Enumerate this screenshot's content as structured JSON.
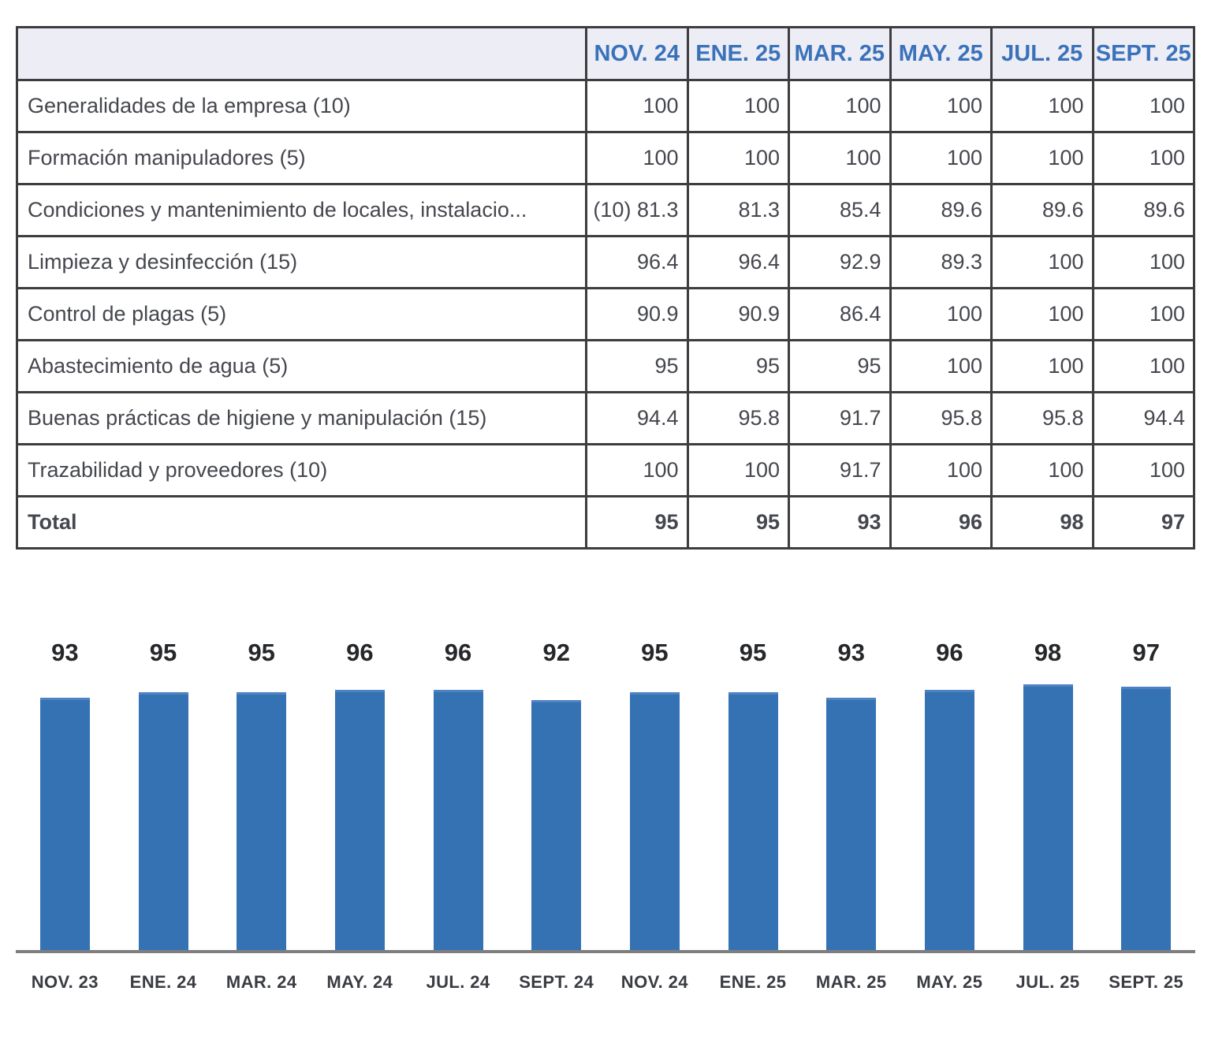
{
  "table": {
    "corner_label": ""
  },
  "chart_data": [
    {
      "type": "table",
      "columns": [
        "NOV. 24",
        "ENE. 25",
        "MAR. 25",
        "MAY. 25",
        "JUL. 25",
        "SEPT. 25"
      ],
      "rows": [
        {
          "label": "Generalidades de la empresa (10)",
          "values": [
            "100",
            "100",
            "100",
            "100",
            "100",
            "100"
          ]
        },
        {
          "label": "Formación manipuladores (5)",
          "values": [
            "100",
            "100",
            "100",
            "100",
            "100",
            "100"
          ]
        },
        {
          "label": "Condiciones y mantenimiento de locales, instalacio...",
          "values": [
            "(10) 81.3",
            "81.3",
            "85.4",
            "89.6",
            "89.6",
            "89.6"
          ]
        },
        {
          "label": "Limpieza y desinfección (15)",
          "values": [
            "96.4",
            "96.4",
            "92.9",
            "89.3",
            "100",
            "100"
          ]
        },
        {
          "label": "Control de plagas (5)",
          "values": [
            "90.9",
            "90.9",
            "86.4",
            "100",
            "100",
            "100"
          ]
        },
        {
          "label": "Abastecimiento de agua (5)",
          "values": [
            "95",
            "95",
            "95",
            "100",
            "100",
            "100"
          ]
        },
        {
          "label": "Buenas prácticas de higiene y manipulación (15)",
          "values": [
            "94.4",
            "95.8",
            "91.7",
            "95.8",
            "95.8",
            "94.4"
          ]
        },
        {
          "label": "Trazabilidad y proveedores (10)",
          "values": [
            "100",
            "100",
            "91.7",
            "100",
            "100",
            "100"
          ]
        }
      ],
      "total_row": {
        "label": "Total",
        "values": [
          "95",
          "95",
          "93",
          "96",
          "98",
          "97"
        ]
      },
      "header_bg": "#ededf6",
      "header_text_color": "#3a72ba",
      "border_color": "#3d3d3f"
    },
    {
      "type": "bar",
      "categories": [
        "NOV. 23",
        "ENE. 24",
        "MAR. 24",
        "MAY. 24",
        "JUL. 24",
        "SEPT. 24",
        "NOV. 24",
        "ENE. 25",
        "MAR. 25",
        "MAY. 25",
        "JUL. 25",
        "SEPT. 25"
      ],
      "values": [
        93,
        95,
        95,
        96,
        96,
        92,
        95,
        95,
        93,
        96,
        98,
        97
      ],
      "data_labels": [
        93,
        95,
        95,
        96,
        96,
        92,
        95,
        95,
        93,
        96,
        98,
        97
      ],
      "title": "",
      "xlabel": "",
      "ylabel": "",
      "ylim": [
        0,
        100
      ],
      "grid": false,
      "legend": false,
      "bar_color": "#3572b4",
      "axis_line_color": "#7e7e80"
    }
  ]
}
